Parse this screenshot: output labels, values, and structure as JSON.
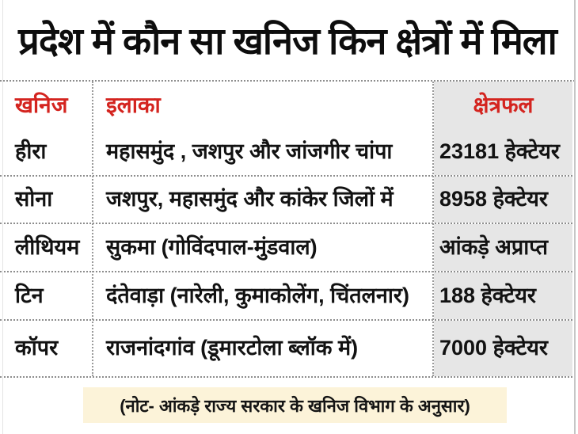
{
  "title": "प्रदेश में कौन सा खनिज किन क्षेत्रों में मिला",
  "table": {
    "headers": [
      "खनिज",
      "इलाका",
      "क्षेत्रफल"
    ],
    "rows": [
      {
        "mineral": "हीरा",
        "area": "महासमुंद , जशपुर और जांजगीर चांपा",
        "extent": "23181 हेक्टेयर"
      },
      {
        "mineral": "सोना",
        "area": "जशपुर, महासमुंद और कांकेर जिलों में",
        "extent": "8958 हेक्टेयर"
      },
      {
        "mineral": "लीथियम",
        "area": "सुकमा (गोविंदपाल-मुंडवाल)",
        "extent": "आंकड़े अप्राप्त"
      },
      {
        "mineral": "टिन",
        "area": "दंतेवाड़ा (नारेली, कुमाकोलेंग, चिंतलनार)",
        "extent": "188 हेक्टेयर"
      },
      {
        "mineral": "कॉपर",
        "area": "राजनांदगांव (डूमारटोला ब्लॉक में)",
        "extent": "7000 हेक्टेयर"
      }
    ]
  },
  "note": "(नोट- आंकड़े राज्य सरकार के खनिज विभाग के अनुसार)",
  "colors": {
    "header_red": "#d4241f",
    "extent_column_bg": "#e6e6e6",
    "note_bg": "#fcf3d9",
    "divider_gray": "#8d8d8d"
  }
}
